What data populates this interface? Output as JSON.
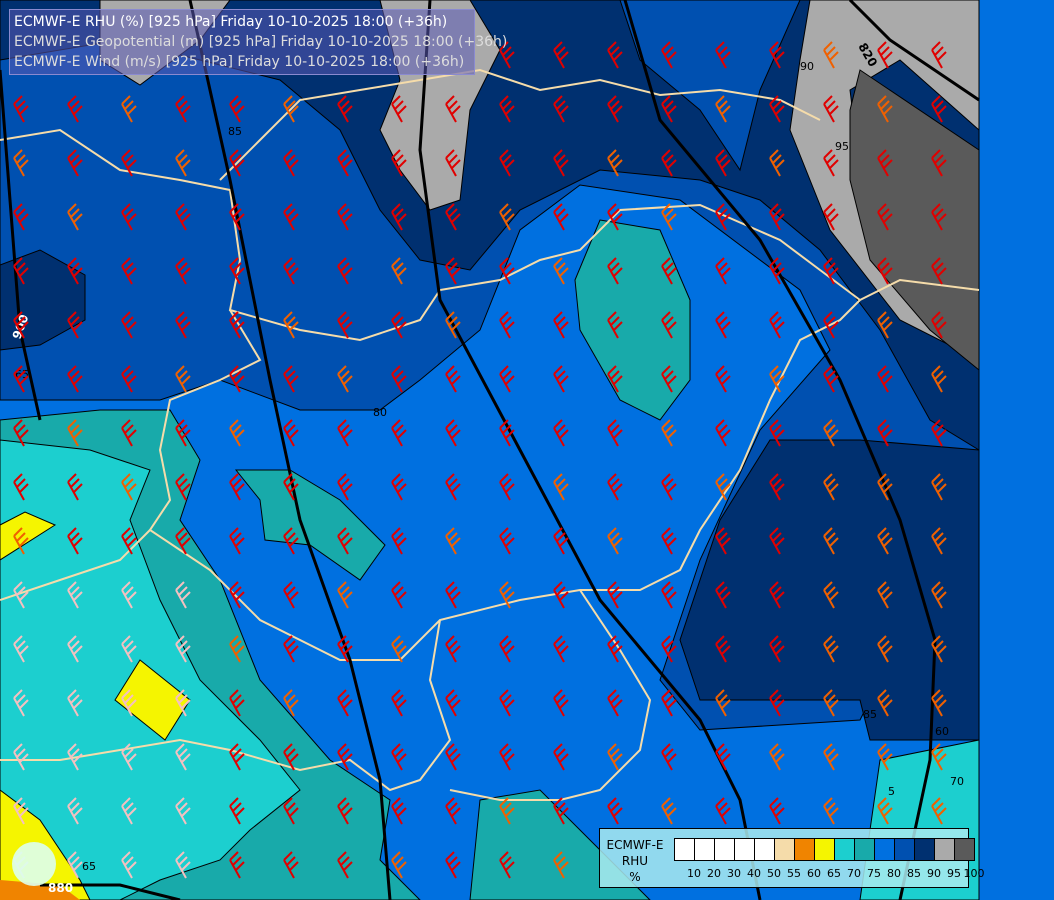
{
  "title_lines": [
    "ECMWF-E RHU (%) [925 hPa] Friday 10-10-2025 18:00 (+36h)",
    "ECMWF-E Geopotential (m) [925 hPa] Friday 10-10-2025 18:00 (+36h)",
    "ECMWF-E Wind (m/s) [925 hPa] Friday 10-10-2025 18:00 (+36h)"
  ],
  "legend": {
    "title": [
      "ECMWF-E",
      "RHU",
      "%"
    ],
    "colors": [
      "#ffffff",
      "#ffffff",
      "#ffffff",
      "#ffffff",
      "#ffffff",
      "#f5dcaa",
      "#f08400",
      "#f5f500",
      "#1ccfcf",
      "#18aaaa",
      "#0070e0",
      "#0050b0",
      "#003070",
      "#aaaaaa",
      "#5a5a5a"
    ],
    "ticks": [
      "10",
      "20",
      "30",
      "40",
      "50",
      "55",
      "60",
      "65",
      "70",
      "75",
      "80",
      "85",
      "90",
      "95",
      "100"
    ]
  },
  "contour_labels": {
    "geopotential": [
      "900",
      "880",
      "820"
    ],
    "rhu": [
      "65",
      "80",
      "95",
      "90",
      "85",
      "60",
      "70",
      "5",
      "85",
      "65"
    ]
  },
  "colors": {
    "rhu_65_70": "#1ccfcf",
    "rhu_70_75": "#18aaaa",
    "rhu_75_80": "#0070e0",
    "rhu_80_85": "#0050b0",
    "rhu_85_90": "#003070",
    "rhu_90_95": "#aaaaaa",
    "rhu_95_100": "#5a5a5a",
    "rhu_60_65": "#f5f500",
    "borders": "#f5dcaa",
    "wind_strong": "#e00000",
    "wind_moderate": "#f06000",
    "wind_light": "#f5c0c0"
  }
}
